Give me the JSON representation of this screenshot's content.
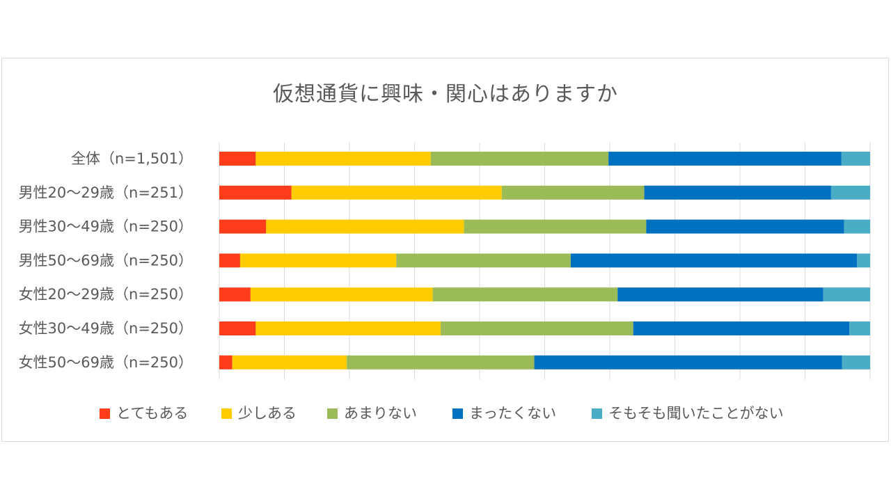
{
  "chart_data": {
    "type": "bar",
    "orientation": "horizontal",
    "stacked": "percent",
    "title": "仮想通貨に興味・関心はありますか",
    "categories": [
      "全体（n=1,501）",
      "男性20～29歳（n=251）",
      "男性30～49歳（n=250）",
      "男性50～69歳（n=250）",
      "女性20～29歳（n=250）",
      "女性30～49歳（n=250）",
      "女性50～69歳（n=250）"
    ],
    "xlim": [
      0,
      100
    ],
    "grid": true,
    "legend_position": "bottom",
    "series": [
      {
        "name": "とてもある",
        "color": "#ff3d1a",
        "values": [
          5.6,
          11.1,
          7.2,
          3.2,
          4.8,
          5.6,
          2.0
        ]
      },
      {
        "name": "少しある",
        "color": "#ffcc00",
        "values": [
          26.9,
          32.3,
          30.4,
          24.0,
          28.0,
          28.4,
          17.6
        ]
      },
      {
        "name": "あまりない",
        "color": "#9bbb59",
        "values": [
          27.3,
          21.9,
          28.0,
          26.8,
          28.4,
          29.6,
          28.8
        ]
      },
      {
        "name": "まったくない",
        "color": "#0070c0",
        "values": [
          35.8,
          28.7,
          30.4,
          44.0,
          31.6,
          33.2,
          47.3
        ]
      },
      {
        "name": "そもそも聞いたことがない",
        "color": "#4bacc6",
        "values": [
          4.4,
          6.0,
          4.0,
          2.0,
          7.2,
          3.2,
          4.3
        ]
      }
    ]
  }
}
